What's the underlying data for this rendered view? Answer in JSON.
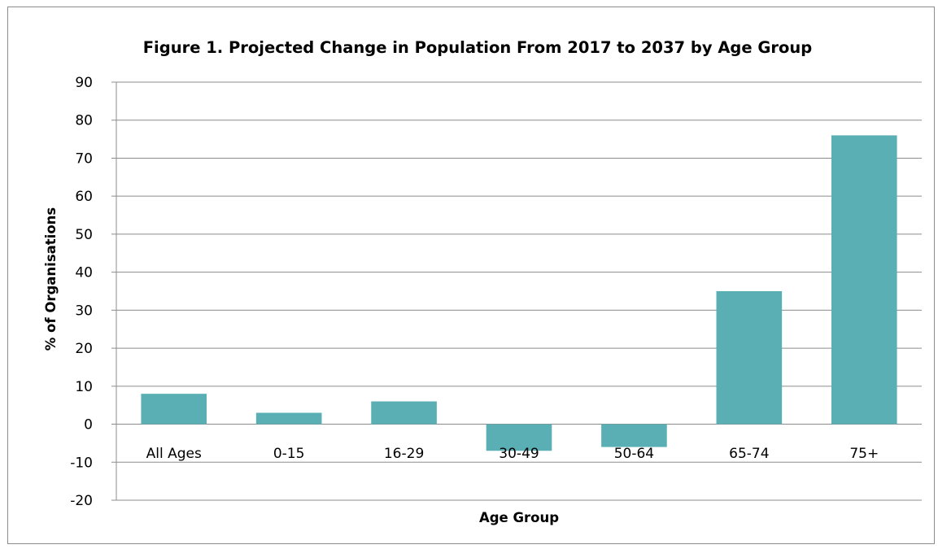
{
  "chart_data": {
    "type": "bar",
    "title": "Figure 1. Projected Change in Population From 2017 to 2037 by Age Group",
    "xlabel": "Age Group",
    "ylabel": "% of Organisations",
    "categories": [
      "All Ages",
      "0-15",
      "16-29",
      "30-49",
      "50-64",
      "65-74",
      "75+"
    ],
    "values": [
      8,
      3,
      6,
      -7,
      -6,
      35,
      76
    ],
    "ylim": [
      -20,
      90
    ],
    "yticks": [
      90,
      80,
      70,
      60,
      50,
      40,
      30,
      20,
      10,
      0,
      -10,
      -20
    ],
    "grid": true,
    "legend": "none",
    "bar_color": "#5aafb5"
  }
}
